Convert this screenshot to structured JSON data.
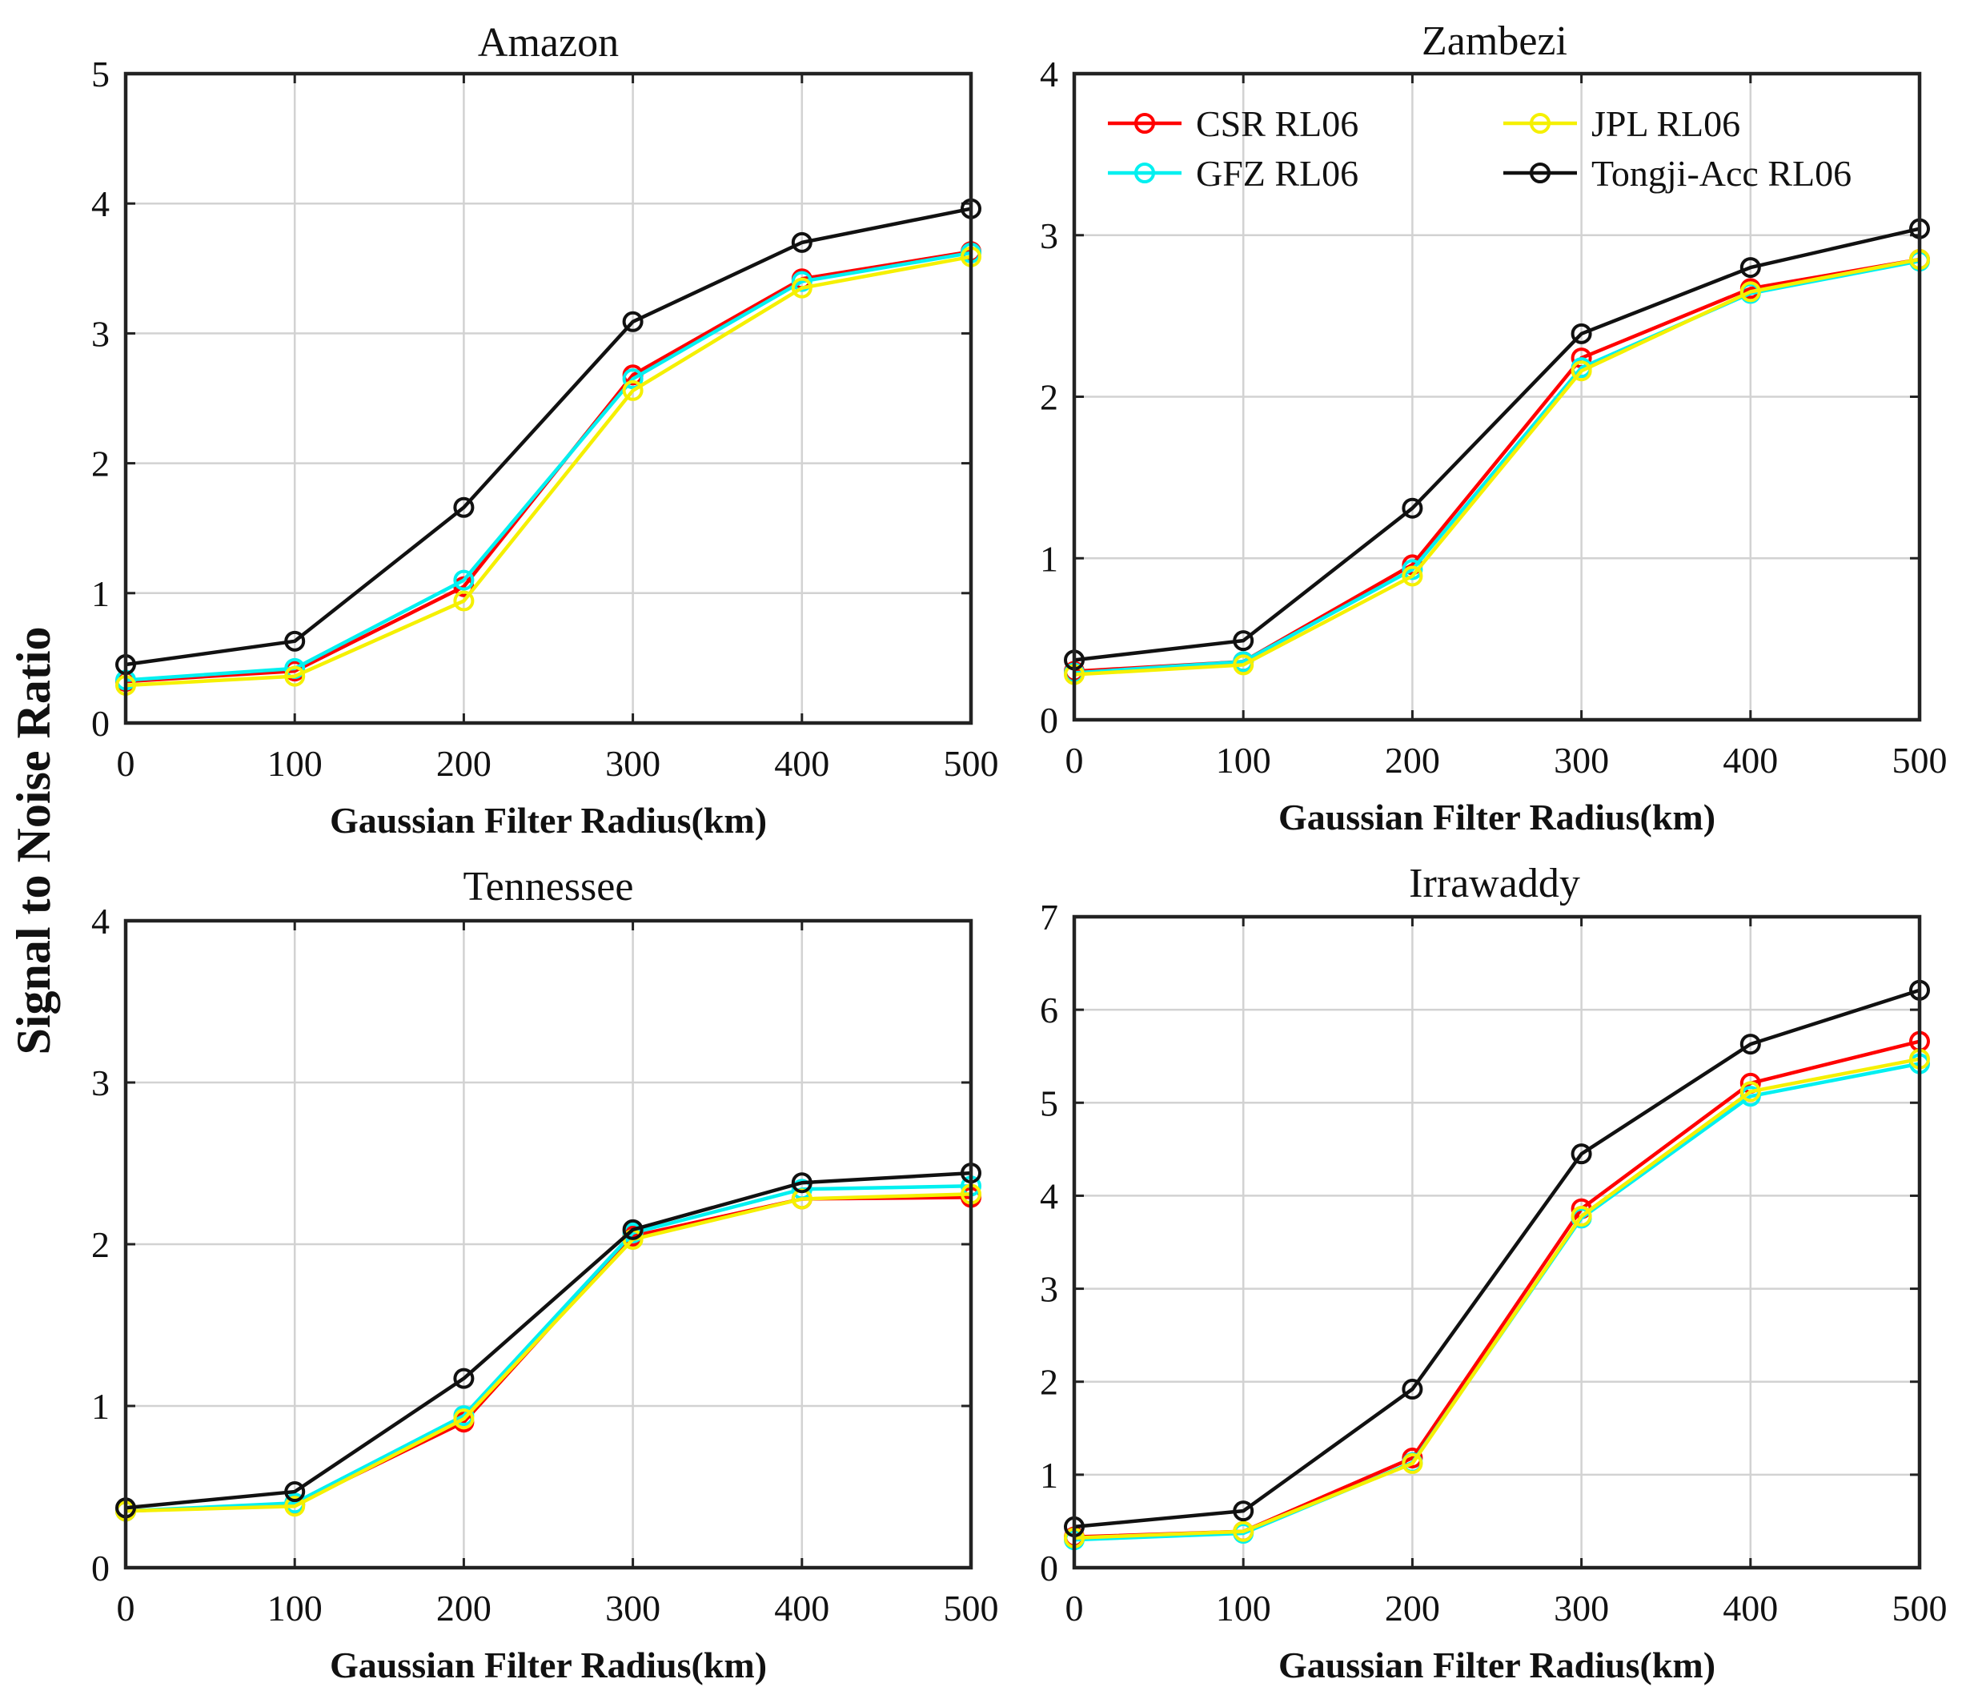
{
  "figure": {
    "global_ylabel": "Signal to Noise Ratio"
  },
  "series_styles": [
    {
      "name": "CSR RL06",
      "color": "#ff0000"
    },
    {
      "name": "GFZ RL06",
      "color": "#00f0f0"
    },
    {
      "name": "JPL RL06",
      "color": "#f5f000"
    },
    {
      "name": "Tongji-Acc RL06",
      "color": "#111111"
    }
  ],
  "legend": {
    "panel": "Zambezi",
    "placement": "top-left",
    "columns": 2,
    "order": [
      "CSR RL06",
      "JPL RL06",
      "GFZ RL06",
      "Tongji-Acc RL06"
    ]
  },
  "chart_data": [
    {
      "type": "line",
      "title": "Amazon",
      "xlabel": "Gaussian Filter Radius(km)",
      "ylabel": "",
      "x": [
        0,
        100,
        200,
        300,
        400,
        500
      ],
      "xlim": [
        0,
        500
      ],
      "xticks": [
        "0",
        "100",
        "200",
        "300",
        "400",
        "500"
      ],
      "ylim": [
        0,
        5
      ],
      "yticks": [
        "0",
        "1",
        "2",
        "3",
        "4",
        "5"
      ],
      "grid": true,
      "series": [
        {
          "name": "CSR RL06",
          "values": [
            0.32,
            0.4,
            1.05,
            2.68,
            3.42,
            3.63
          ]
        },
        {
          "name": "GFZ RL06",
          "values": [
            0.33,
            0.42,
            1.1,
            2.65,
            3.4,
            3.62
          ]
        },
        {
          "name": "JPL RL06",
          "values": [
            0.29,
            0.36,
            0.94,
            2.56,
            3.35,
            3.59
          ]
        },
        {
          "name": "Tongji-Acc RL06",
          "values": [
            0.45,
            0.63,
            1.66,
            3.09,
            3.7,
            3.96
          ]
        }
      ]
    },
    {
      "type": "line",
      "title": "Zambezi",
      "xlabel": "Gaussian Filter Radius(km)",
      "ylabel": "",
      "x": [
        0,
        100,
        200,
        300,
        400,
        500
      ],
      "xlim": [
        0,
        500
      ],
      "xticks": [
        "0",
        "100",
        "200",
        "300",
        "400",
        "500"
      ],
      "ylim": [
        0,
        4
      ],
      "yticks": [
        "0",
        "1",
        "2",
        "3",
        "4"
      ],
      "grid": true,
      "series": [
        {
          "name": "CSR RL06",
          "values": [
            0.3,
            0.36,
            0.96,
            2.24,
            2.67,
            2.85
          ]
        },
        {
          "name": "GFZ RL06",
          "values": [
            0.29,
            0.36,
            0.93,
            2.18,
            2.64,
            2.84
          ]
        },
        {
          "name": "JPL RL06",
          "values": [
            0.28,
            0.34,
            0.89,
            2.16,
            2.65,
            2.85
          ]
        },
        {
          "name": "Tongji-Acc RL06",
          "values": [
            0.37,
            0.49,
            1.31,
            2.39,
            2.8,
            3.04
          ]
        }
      ]
    },
    {
      "type": "line",
      "title": "Tennessee",
      "xlabel": "Gaussian Filter Radius(km)",
      "ylabel": "",
      "x": [
        0,
        100,
        200,
        300,
        400,
        500
      ],
      "xlim": [
        0,
        500
      ],
      "xticks": [
        "0",
        "100",
        "200",
        "300",
        "400",
        "500"
      ],
      "ylim": [
        0,
        4
      ],
      "yticks": [
        "0",
        "1",
        "2",
        "3",
        "4"
      ],
      "grid": true,
      "series": [
        {
          "name": "CSR RL06",
          "values": [
            0.35,
            0.39,
            0.9,
            2.05,
            2.28,
            2.29
          ]
        },
        {
          "name": "GFZ RL06",
          "values": [
            0.35,
            0.4,
            0.94,
            2.07,
            2.34,
            2.36
          ]
        },
        {
          "name": "JPL RL06",
          "values": [
            0.35,
            0.38,
            0.92,
            2.03,
            2.28,
            2.31
          ]
        },
        {
          "name": "Tongji-Acc RL06",
          "values": [
            0.37,
            0.47,
            1.17,
            2.09,
            2.38,
            2.44
          ]
        }
      ]
    },
    {
      "type": "line",
      "title": "Irrawaddy",
      "xlabel": "Gaussian Filter Radius(km)",
      "ylabel": "",
      "x": [
        0,
        100,
        200,
        300,
        400,
        500
      ],
      "xlim": [
        0,
        500
      ],
      "xticks": [
        "0",
        "100",
        "200",
        "300",
        "400",
        "500"
      ],
      "ylim": [
        0,
        7
      ],
      "yticks": [
        "0",
        "1",
        "2",
        "3",
        "4",
        "5",
        "6",
        "7"
      ],
      "grid": true,
      "series": [
        {
          "name": "CSR RL06",
          "values": [
            0.33,
            0.39,
            1.18,
            3.86,
            5.21,
            5.66
          ]
        },
        {
          "name": "GFZ RL06",
          "values": [
            0.3,
            0.37,
            1.13,
            3.76,
            5.07,
            5.42
          ]
        },
        {
          "name": "JPL RL06",
          "values": [
            0.32,
            0.39,
            1.12,
            3.78,
            5.12,
            5.47
          ]
        },
        {
          "name": "Tongji-Acc RL06",
          "values": [
            0.44,
            0.61,
            1.92,
            4.45,
            5.63,
            6.21
          ]
        }
      ]
    }
  ]
}
